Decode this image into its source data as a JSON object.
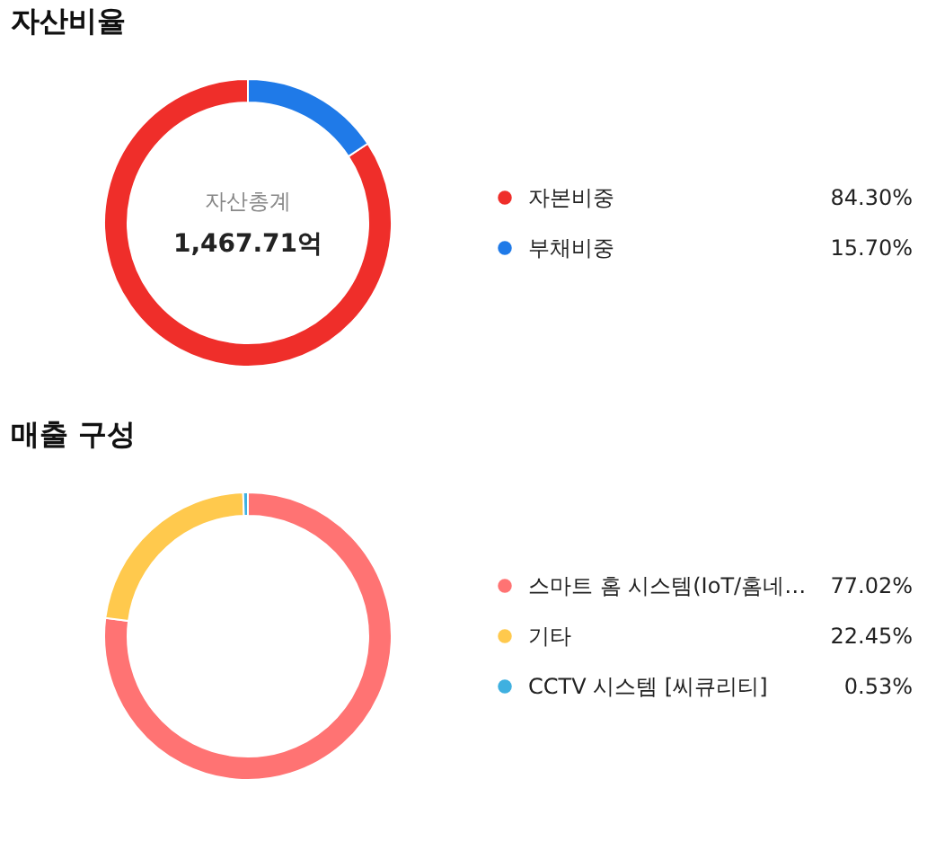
{
  "chart_data": [
    {
      "type": "donut",
      "title": "자산비율",
      "categories": [
        "자본비중",
        "부채비중"
      ],
      "values": [
        84.3,
        15.7
      ],
      "colors": [
        "#ef2e2a",
        "#1f7ae8"
      ],
      "value_labels": [
        "84.30%",
        "15.70%"
      ],
      "annotations": [
        "자산총계",
        "1,467.71억"
      ],
      "legend": "right"
    },
    {
      "type": "donut",
      "title": "매출 구성",
      "categories": [
        "스마트 홈 시스템(IoT/홈네…",
        "기타",
        "CCTV 시스템 [씨큐리티]"
      ],
      "values": [
        77.02,
        22.45,
        0.53
      ],
      "colors": [
        "#ff7373",
        "#ffc94d",
        "#3fb0e0"
      ],
      "value_labels": [
        "77.02%",
        "22.45%",
        "0.53%"
      ],
      "legend": "right"
    }
  ]
}
